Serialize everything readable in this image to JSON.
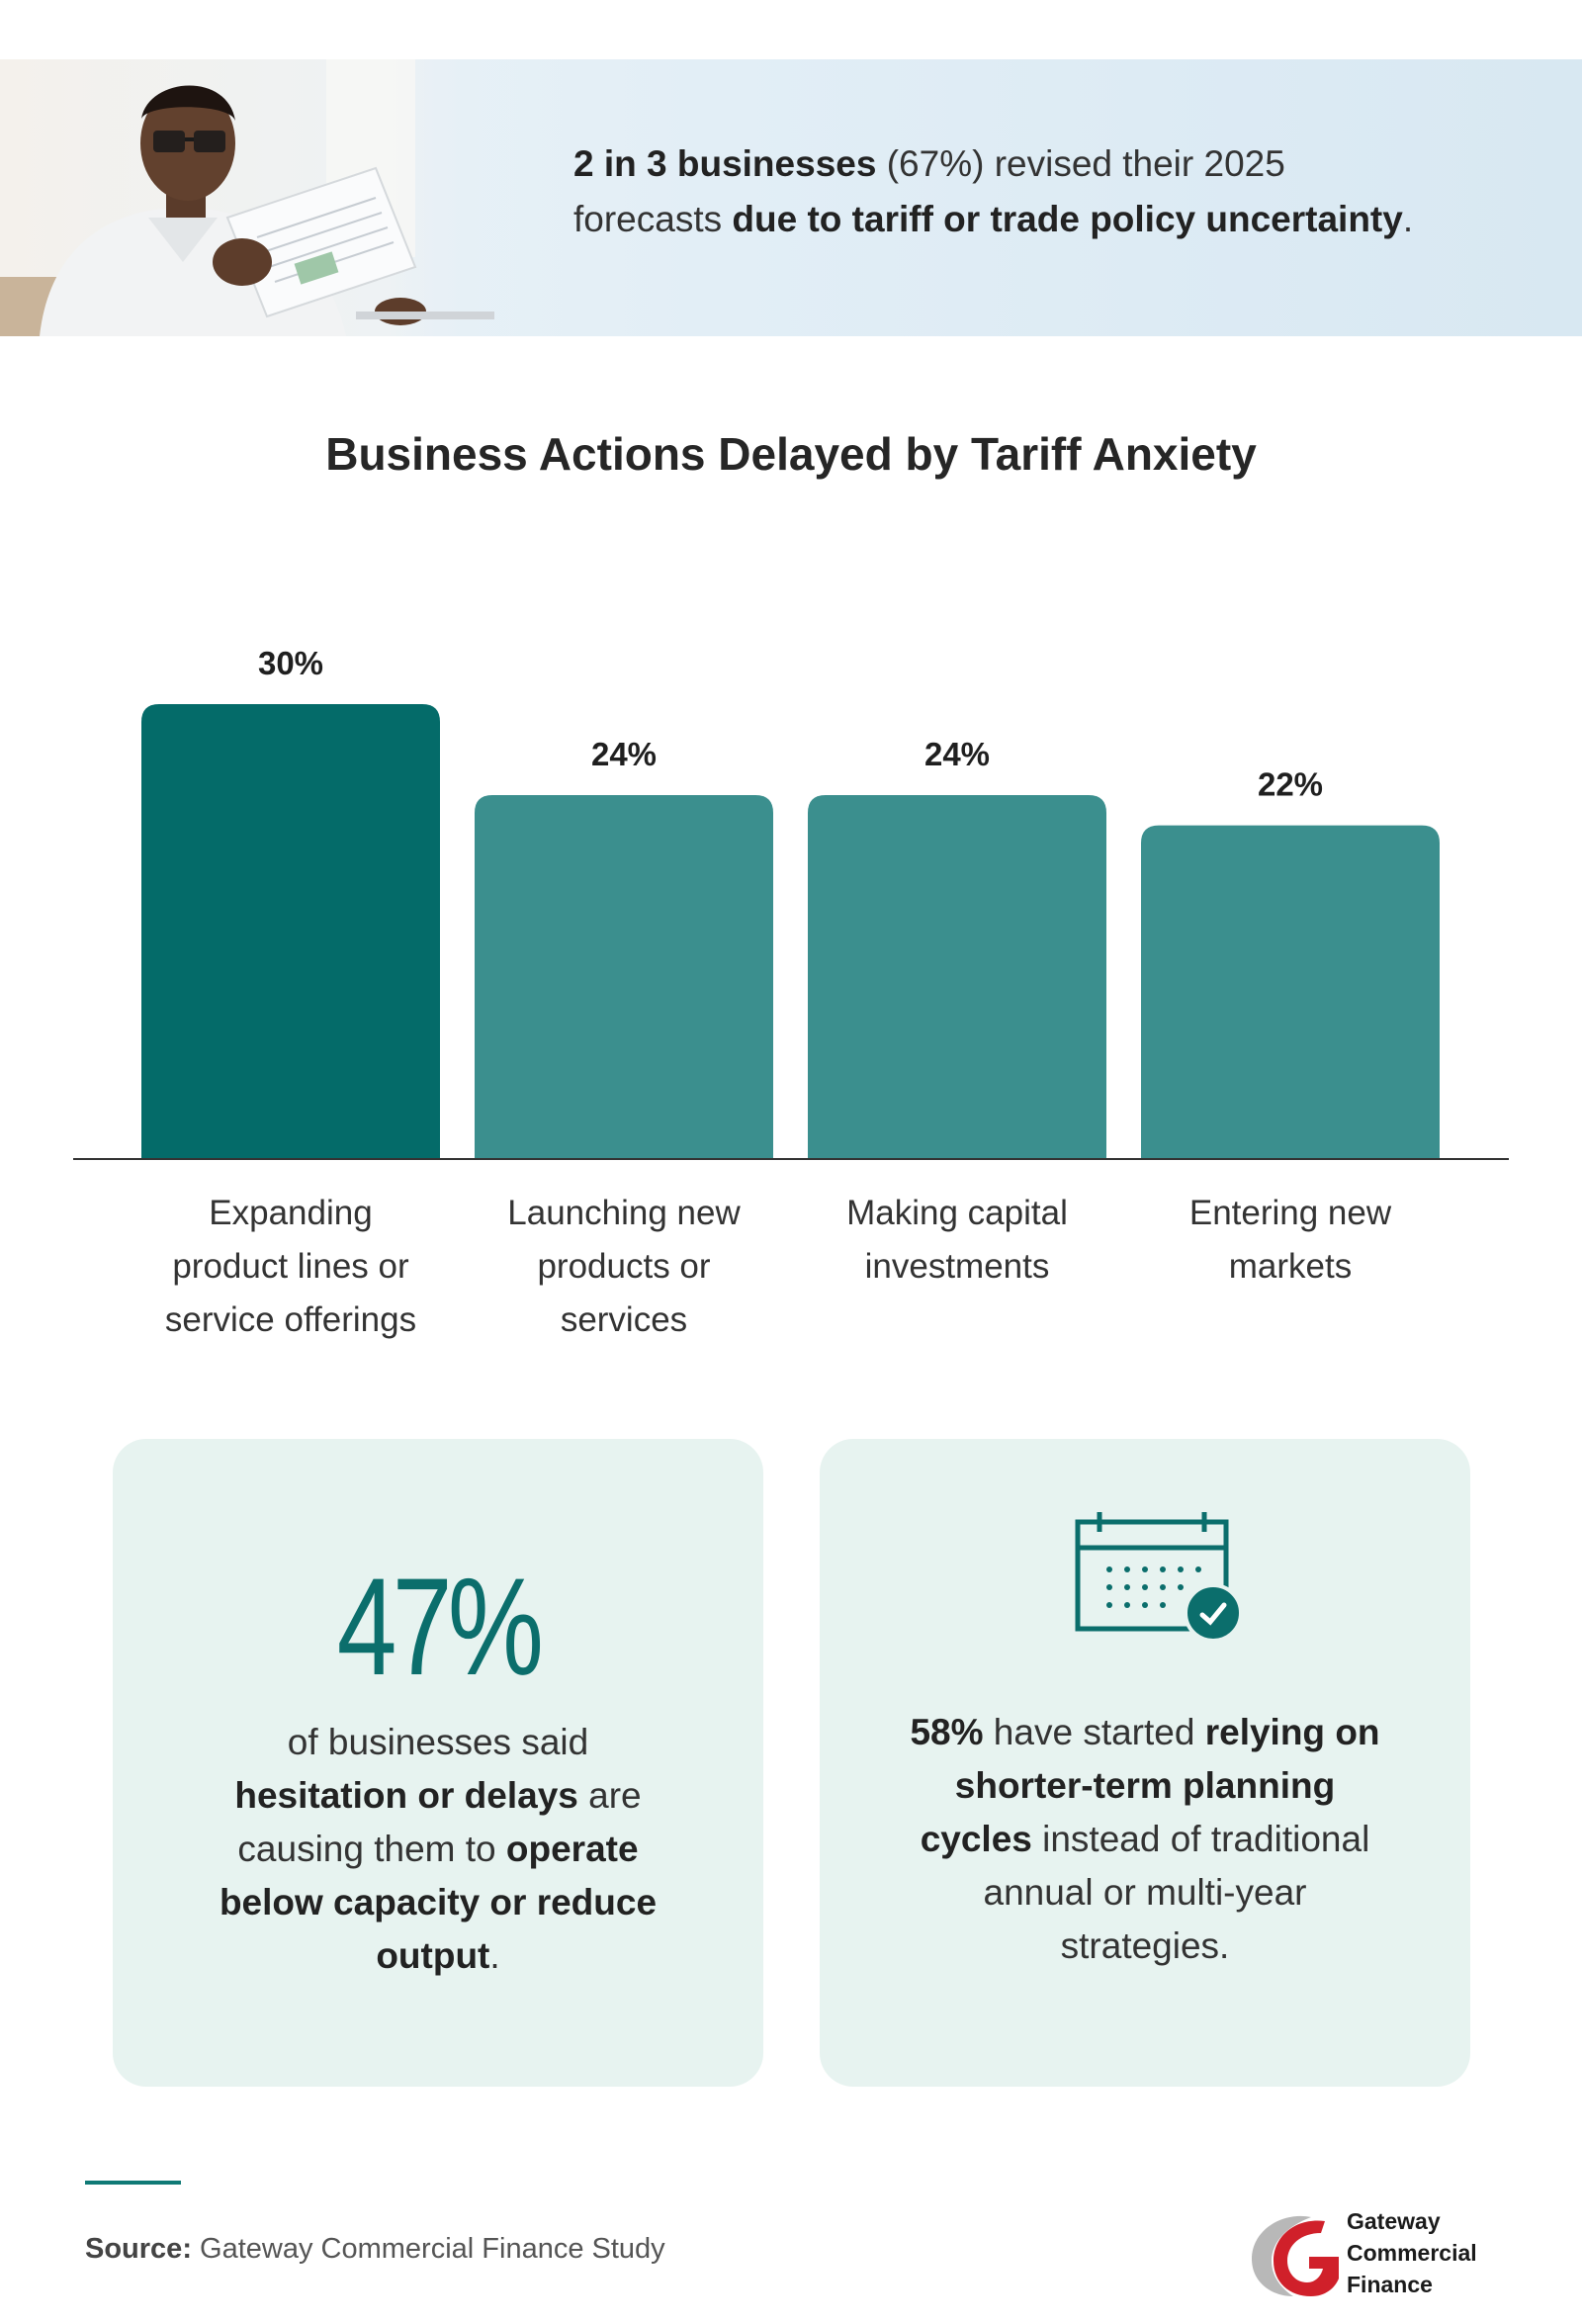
{
  "hero": {
    "line1_bold": "2 in 3 businesses",
    "line1_rest": " (67%) revised their 2025",
    "line2_start": "forecasts ",
    "line2_bold": "due to tariff or trade policy uncertainty",
    "line2_end": "."
  },
  "colors": {
    "highlight_bar": "#046b69",
    "bar": "#3b8f8e",
    "accent": "#0b6e6c",
    "card_bg": "#e7f3f0"
  },
  "chart_data": {
    "type": "bar",
    "title": "Business Actions Delayed by Tariff Anxiety",
    "categories": [
      [
        "Expanding",
        "product lines or",
        "service offerings"
      ],
      [
        "Launching new",
        "products or",
        "services"
      ],
      [
        "Making capital",
        "investments"
      ],
      [
        "Entering new",
        "markets"
      ]
    ],
    "values": [
      30,
      24,
      24,
      22
    ],
    "value_labels": [
      "30%",
      "24%",
      "24%",
      "22%"
    ],
    "highlight_index": 0,
    "ylim": [
      0,
      30
    ],
    "grid": false,
    "legend": "none"
  },
  "card_left": {
    "stat": "47%",
    "t1": "of businesses said",
    "b1": "hesitation or delays",
    "t2": " are",
    "t3": "causing them to ",
    "b2": "operate",
    "b3": "below capacity or reduce",
    "b4": "output",
    "t4": "."
  },
  "card_right": {
    "icon": "calendar-check-icon",
    "b1": "58%",
    "t1": " have started ",
    "b2": "relying on",
    "b3": "shorter-term planning",
    "b4": "cycles",
    "t2": " instead of traditional",
    "t3": "annual or multi-year",
    "t4": "strategies."
  },
  "footer": {
    "source_label": "Source:",
    "source_text": " Gateway Commercial Finance Study",
    "logo_line1": "Gateway",
    "logo_line2": "Commercial",
    "logo_line3": "Finance"
  }
}
